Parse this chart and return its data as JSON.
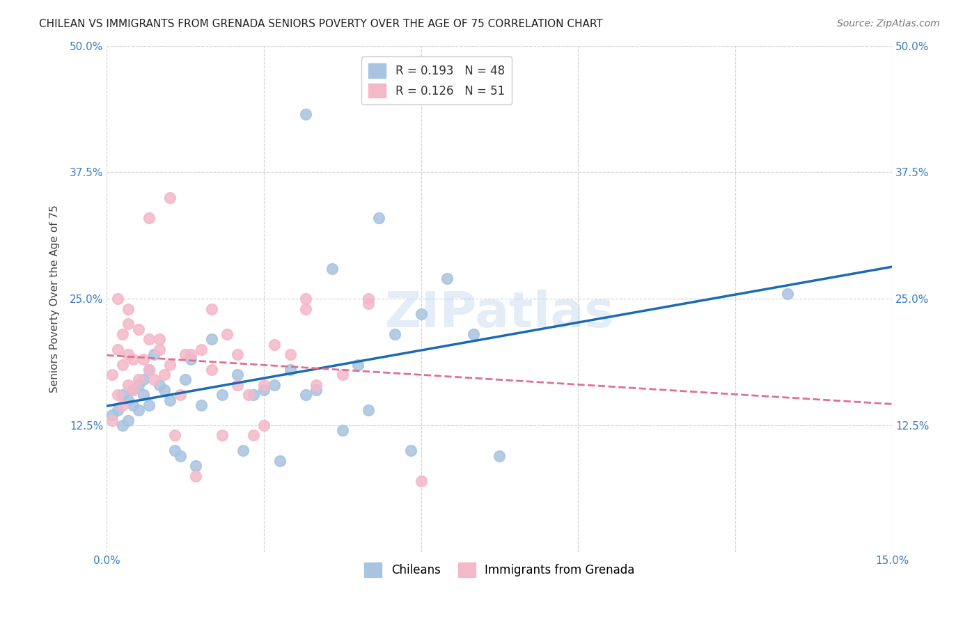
{
  "title": "CHILEAN VS IMMIGRANTS FROM GRENADA SENIORS POVERTY OVER THE AGE OF 75 CORRELATION CHART",
  "source": "Source: ZipAtlas.com",
  "xlabel": "",
  "ylabel": "Seniors Poverty Over the Age of 75",
  "xlim": [
    0.0,
    0.15
  ],
  "ylim": [
    0.0,
    0.5
  ],
  "xticks": [
    0.0,
    0.03,
    0.06,
    0.09,
    0.12,
    0.15
  ],
  "xticklabels": [
    "0.0%",
    "",
    "",
    "",
    "",
    "15.0%"
  ],
  "yticks": [
    0.0,
    0.125,
    0.25,
    0.375,
    0.5
  ],
  "yticklabels": [
    "",
    "12.5%",
    "25.0%",
    "37.5%",
    "50.0%"
  ],
  "chilean_color": "#a8c4e0",
  "grenada_color": "#f4b8c8",
  "chilean_line_color": "#1a6bb5",
  "grenada_line_color": "#e07090",
  "r_chilean": 0.193,
  "n_chilean": 48,
  "r_grenada": 0.126,
  "n_grenada": 51,
  "legend_label_chilean": "Chileans",
  "legend_label_grenada": "Immigrants from Grenada",
  "watermark": "ZIPatlas",
  "chilean_x": [
    0.001,
    0.002,
    0.003,
    0.003,
    0.004,
    0.004,
    0.005,
    0.005,
    0.006,
    0.006,
    0.007,
    0.007,
    0.008,
    0.008,
    0.009,
    0.01,
    0.011,
    0.012,
    0.013,
    0.014,
    0.015,
    0.016,
    0.017,
    0.018,
    0.02,
    0.022,
    0.025,
    0.026,
    0.028,
    0.03,
    0.032,
    0.033,
    0.035,
    0.038,
    0.04,
    0.043,
    0.045,
    0.048,
    0.05,
    0.055,
    0.058,
    0.06,
    0.065,
    0.07,
    0.075,
    0.13,
    0.038,
    0.052
  ],
  "chilean_y": [
    0.135,
    0.14,
    0.155,
    0.125,
    0.15,
    0.13,
    0.145,
    0.16,
    0.165,
    0.14,
    0.155,
    0.17,
    0.18,
    0.145,
    0.195,
    0.165,
    0.16,
    0.15,
    0.1,
    0.095,
    0.17,
    0.19,
    0.085,
    0.145,
    0.21,
    0.155,
    0.175,
    0.1,
    0.155,
    0.16,
    0.165,
    0.09,
    0.18,
    0.155,
    0.16,
    0.28,
    0.12,
    0.185,
    0.14,
    0.215,
    0.1,
    0.235,
    0.27,
    0.215,
    0.095,
    0.255,
    0.432,
    0.33
  ],
  "grenada_x": [
    0.001,
    0.001,
    0.002,
    0.002,
    0.003,
    0.003,
    0.003,
    0.004,
    0.004,
    0.004,
    0.005,
    0.005,
    0.006,
    0.006,
    0.007,
    0.008,
    0.008,
    0.009,
    0.01,
    0.011,
    0.012,
    0.013,
    0.014,
    0.015,
    0.016,
    0.017,
    0.018,
    0.02,
    0.022,
    0.023,
    0.025,
    0.027,
    0.028,
    0.03,
    0.032,
    0.035,
    0.038,
    0.04,
    0.045,
    0.05,
    0.06,
    0.002,
    0.004,
    0.008,
    0.01,
    0.012,
    0.02,
    0.025,
    0.03,
    0.038,
    0.05
  ],
  "grenada_y": [
    0.13,
    0.175,
    0.155,
    0.2,
    0.145,
    0.185,
    0.215,
    0.165,
    0.195,
    0.225,
    0.16,
    0.19,
    0.17,
    0.22,
    0.19,
    0.18,
    0.21,
    0.17,
    0.2,
    0.175,
    0.185,
    0.115,
    0.155,
    0.195,
    0.195,
    0.075,
    0.2,
    0.18,
    0.115,
    0.215,
    0.165,
    0.155,
    0.115,
    0.125,
    0.205,
    0.195,
    0.24,
    0.165,
    0.175,
    0.245,
    0.07,
    0.25,
    0.24,
    0.33,
    0.21,
    0.35,
    0.24,
    0.195,
    0.165,
    0.25,
    0.25
  ],
  "background_color": "#ffffff",
  "grid_color": "#d0d0d0",
  "title_fontsize": 11,
  "axis_label_fontsize": 11,
  "tick_fontsize": 11,
  "legend_fontsize": 12
}
